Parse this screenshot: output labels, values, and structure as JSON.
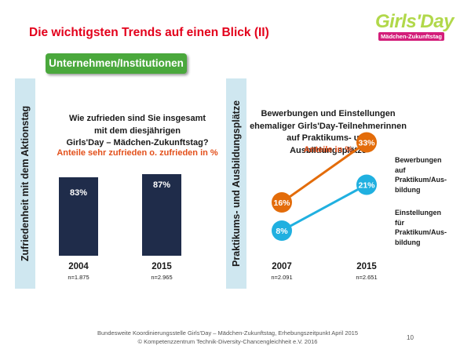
{
  "title": "Die wichtigsten Trends auf einen Blick (II)",
  "logo": {
    "name": "Girls'Day",
    "subtitle": "Mädchen-Zukunftstag"
  },
  "section_badge": "Unternehmen/Institutionen",
  "left_panel": {
    "side_label": "Zufriedenheit mit dem Aktionstag",
    "question_lines": [
      "Wie zufrieden sind Sie insgesamt",
      "mit dem diesjährigen",
      "Girls'Day – Mädchen-Zukunftstag?"
    ],
    "note": "Anteile sehr zufrieden o. zufrieden in %"
  },
  "right_panel": {
    "side_label": "Praktikums- und Ausbildungsplätze",
    "question_lines": [
      "Bewerbungen und Einstellungen",
      "ehemaliger Girls'Day-Teilnehmerinnen",
      "auf Praktikums- und Ausbildungsplätze"
    ],
    "note": "Anteile in %",
    "legend": {
      "series1": [
        "Bewerbungen",
        "auf",
        "Praktikum/Aus-",
        "bildung"
      ],
      "series2": [
        "Einstellungen",
        "für",
        "Praktikum/Aus-",
        "bildung"
      ]
    }
  },
  "chart_data": [
    {
      "type": "bar",
      "categories": [
        "2004",
        "2015"
      ],
      "sample_sizes": [
        "n=1.875",
        "n=2.965"
      ],
      "values": [
        83,
        87
      ],
      "value_labels": [
        "83%",
        "87%"
      ],
      "ylim": [
        0,
        100
      ],
      "color": "#1f2c4a"
    },
    {
      "type": "line",
      "x": [
        "2007",
        "2015"
      ],
      "sample_sizes": [
        "n=2.091",
        "n=2.651"
      ],
      "ylim": [
        0,
        40
      ],
      "series": [
        {
          "name": "Bewerbungen auf Praktikum/Ausbildung",
          "values": [
            16,
            33
          ],
          "labels": [
            "16%",
            "33%"
          ],
          "color": "#e36c0a"
        },
        {
          "name": "Einstellungen für Praktikum/Ausbildung",
          "values": [
            8,
            21
          ],
          "labels": [
            "8%",
            "21%"
          ],
          "color": "#20b0e0"
        }
      ]
    }
  ],
  "footer": {
    "line1": "Bundesweite Koordinierungsstelle Girls'Day – Mädchen-Zukunftstag, Erhebungszeitpunkt April 2015",
    "line2": "© Kompetenzzentrum Technik-Diversity-Chancengleichheit e.V. 2016"
  },
  "page_number": "10"
}
